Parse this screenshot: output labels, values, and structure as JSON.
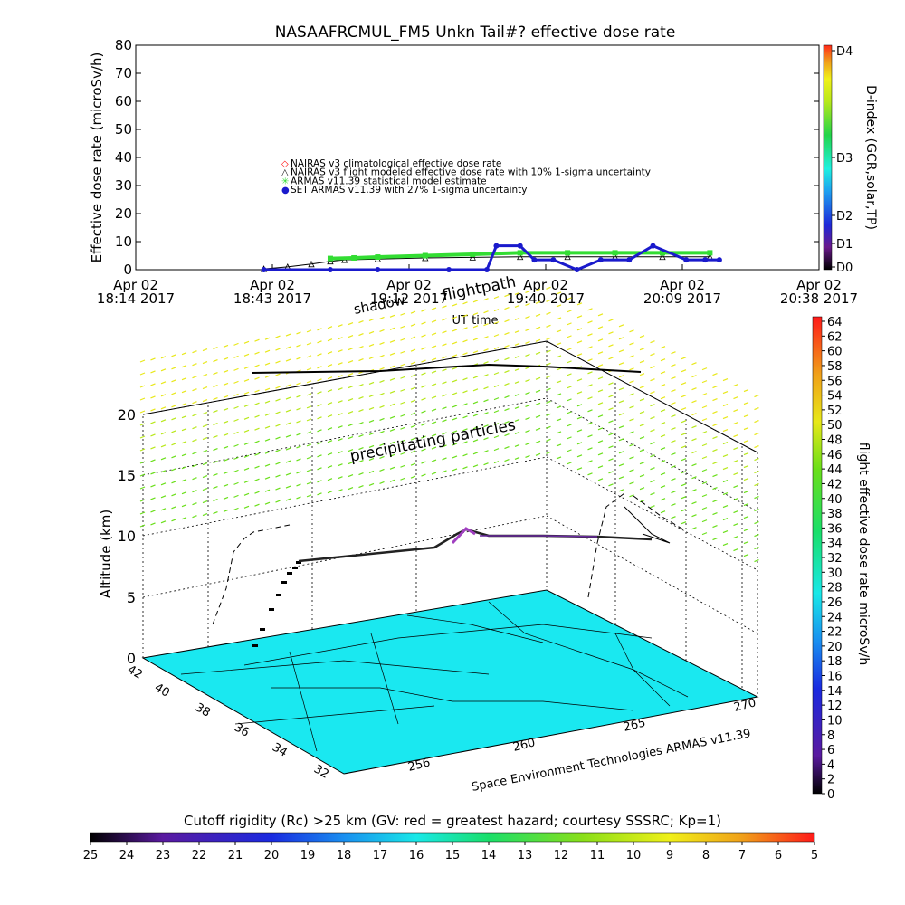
{
  "top_chart": {
    "title": "NASAAFRCMUL_FM5 Unkn Tail#? effective dose rate",
    "ylabel": "Effective dose rate (microSv/h)",
    "xlabel": "UT time",
    "right_label": "D-index (GCR,solar,TP)",
    "d_ticks": [
      "D4",
      "D3",
      "D2",
      "D1",
      "D0"
    ],
    "x_ticks": [
      {
        "l1": "Apr 02",
        "l2": "18:14 2017"
      },
      {
        "l1": "Apr 02",
        "l2": "18:43 2017"
      },
      {
        "l1": "Apr 02",
        "l2": "19:12 2017"
      },
      {
        "l1": "Apr 02",
        "l2": "19:40 2017"
      },
      {
        "l1": "Apr 02",
        "l2": "20:09 2017"
      },
      {
        "l1": "Apr 02",
        "l2": "20:38 2017"
      }
    ],
    "y_ticks": [
      "0",
      "10",
      "20",
      "30",
      "40",
      "50",
      "60",
      "70",
      "80"
    ],
    "legend": [
      "NAIRAS v3 climatological effective dose rate",
      "NAIRAS v3 flight modeled effective dose rate with 10% 1-sigma uncertainty",
      "ARMAS v11.39 statistical model estimate",
      "SET ARMAS v11.39 with 27% 1-sigma uncertainty"
    ],
    "overlay_text": {
      "flightpath": "flightpath",
      "shadow": "shadow"
    },
    "colors": {
      "nairas_clim": "#ff0000",
      "nairas_flight": "#000000",
      "armas_model": "#33dd33",
      "set_armas": "#1a1acc"
    }
  },
  "chart_data": [
    {
      "type": "scatter",
      "title": "NASAAFRCMUL_FM5 Unkn Tail#? effective dose rate",
      "xlabel": "UT time",
      "ylabel": "Effective dose rate (microSv/h)",
      "ylim": [
        0,
        80
      ],
      "xlim": [
        "18:14",
        "20:38"
      ],
      "series": [
        {
          "name": "NAIRAS v3 flight modeled effective dose rate with 10% 1-sigma uncertainty",
          "x": [
            "18:41",
            "18:46",
            "18:51",
            "18:55",
            "18:58",
            "19:05",
            "19:15",
            "19:25",
            "19:35",
            "19:45",
            "19:55",
            "20:05",
            "20:15"
          ],
          "values": [
            0.3,
            1.0,
            2.0,
            3.0,
            3.5,
            3.8,
            4.2,
            4.4,
            4.6,
            4.6,
            4.6,
            4.6,
            4.6
          ]
        },
        {
          "name": "ARMAS v11.39 statistical model estimate",
          "x": [
            "18:55",
            "19:00",
            "19:05",
            "19:15",
            "19:25",
            "19:35",
            "19:45",
            "19:55",
            "20:05",
            "20:15"
          ],
          "values": [
            4.0,
            4.2,
            4.5,
            5.0,
            5.5,
            6.0,
            6.0,
            6.0,
            6.0,
            6.0
          ]
        },
        {
          "name": "SET ARMAS v11.39 with 27% 1-sigma uncertainty",
          "x": [
            "18:41",
            "18:55",
            "19:05",
            "19:20",
            "19:28",
            "19:30",
            "19:35",
            "19:38",
            "19:42",
            "19:47",
            "19:52",
            "19:58",
            "20:03",
            "20:10",
            "20:14",
            "20:17"
          ],
          "values": [
            0,
            0,
            0,
            0,
            0,
            8.5,
            8.5,
            3.5,
            3.5,
            0,
            3.5,
            3.5,
            8.5,
            3.5,
            3.5,
            3.5
          ]
        }
      ]
    },
    {
      "type": "scatter",
      "ylabel": "Altitude (km)",
      "yticks": [
        "0",
        "5",
        "10",
        "15",
        "20"
      ],
      "lat_ticks": [
        "42",
        "40",
        "38",
        "36",
        "34",
        "32"
      ],
      "lon_ticks": [
        "256",
        "260",
        "265",
        "270"
      ],
      "title": "precipitating particles",
      "series": [
        {
          "name": "flight altitude profile",
          "altitude_km": [
            0.5,
            2,
            4,
            6,
            8,
            8.5,
            9,
            9.5,
            10.5,
            10,
            10,
            10
          ]
        }
      ],
      "colorbar_label": "flight effective dose rate microSv/h",
      "colorbar_ticks": [
        "0",
        "2",
        "4",
        "6",
        "8",
        "10",
        "12",
        "14",
        "16",
        "18",
        "20",
        "22",
        "24",
        "26",
        "28",
        "30",
        "32",
        "34",
        "36",
        "38",
        "40",
        "42",
        "44",
        "46",
        "48",
        "50",
        "52",
        "54",
        "56",
        "58",
        "60",
        "62",
        "64"
      ],
      "footer": "Space Environment Technologies ARMAS v11.39"
    }
  ],
  "bottom_bar": {
    "title": "Cutoff rigidity (Rc) >25 km (GV: red = greatest hazard; courtesy SSSRC; Kp=1)",
    "ticks": [
      "25",
      "24",
      "23",
      "22",
      "21",
      "20",
      "19",
      "18",
      "17",
      "16",
      "15",
      "14",
      "13",
      "12",
      "11",
      "10",
      "9",
      "8",
      "7",
      "6",
      "5"
    ]
  }
}
